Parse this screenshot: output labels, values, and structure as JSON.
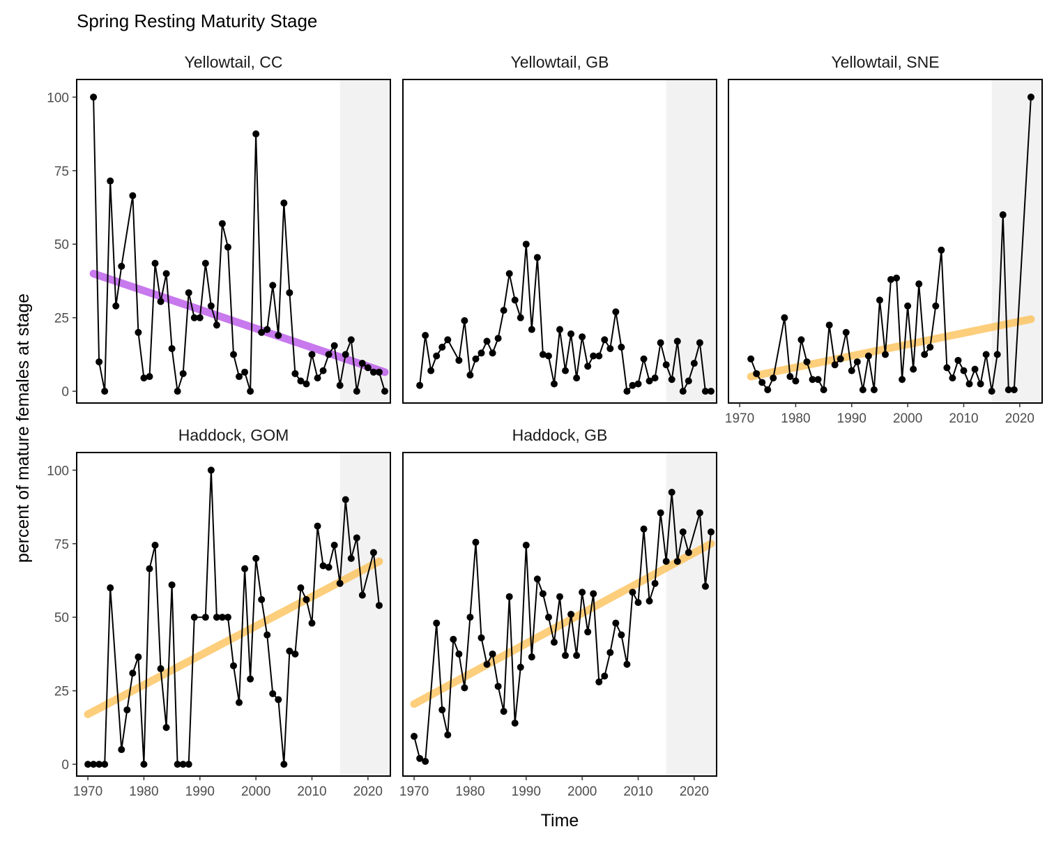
{
  "chart_data": {
    "type": "line",
    "title": "Spring Resting Maturity Stage",
    "xlabel": "Time",
    "ylabel": "percent of mature females at stage",
    "xlim": [
      1968,
      2024
    ],
    "ylim": [
      -4,
      106
    ],
    "x_ticks": [
      1970,
      1980,
      1990,
      2000,
      2010,
      2020
    ],
    "y_ticks": [
      0,
      25,
      50,
      75,
      100
    ],
    "highlight_region": {
      "x_start": 2015,
      "x_end": 2024,
      "color": "#f2f2f2"
    },
    "colors": {
      "decreasing_trend": "#b54de8",
      "increasing_trend": "#fdbe4f",
      "series": "#000000"
    },
    "panels": [
      {
        "name": "Yellowtail, CC",
        "x": [
          1971,
          1972,
          1973,
          1974,
          1975,
          1976,
          1978,
          1979,
          1980,
          1981,
          1982,
          1983,
          1984,
          1985,
          1986,
          1987,
          1988,
          1989,
          1990,
          1991,
          1992,
          1993,
          1994,
          1995,
          1996,
          1997,
          1998,
          1999,
          2000,
          2001,
          2002,
          2003,
          2004,
          2005,
          2006,
          2007,
          2008,
          2009,
          2010,
          2011,
          2012,
          2013,
          2014,
          2015,
          2016,
          2017,
          2018,
          2019,
          2020,
          2021,
          2022,
          2023
        ],
        "y": [
          100,
          10,
          0,
          71.5,
          29,
          42.5,
          66.5,
          20,
          4.5,
          5,
          43.5,
          30.5,
          40,
          14.5,
          0,
          6,
          33.5,
          25,
          25,
          43.5,
          29,
          22.5,
          57,
          49,
          12.5,
          5,
          6.5,
          0,
          87.5,
          20,
          21,
          36,
          19,
          64,
          33.5,
          6,
          3.5,
          2.5,
          12.5,
          4.5,
          7,
          12.5,
          15.5,
          2,
          12.5,
          17.5,
          0,
          9.5,
          8,
          6.5,
          6.5,
          0
        ],
        "trend": {
          "x": [
            1971,
            2023
          ],
          "y": [
            40,
            6.5
          ],
          "direction": "decreasing"
        }
      },
      {
        "name": "Yellowtail, GB",
        "x": [
          1971,
          1972,
          1973,
          1974,
          1975,
          1976,
          1978,
          1979,
          1980,
          1981,
          1982,
          1983,
          1984,
          1985,
          1986,
          1987,
          1988,
          1989,
          1990,
          1991,
          1992,
          1993,
          1994,
          1995,
          1996,
          1997,
          1998,
          1999,
          2000,
          2001,
          2002,
          2003,
          2004,
          2005,
          2006,
          2007,
          2008,
          2009,
          2010,
          2011,
          2012,
          2013,
          2014,
          2015,
          2016,
          2017,
          2018,
          2019,
          2020,
          2021,
          2022,
          2023
        ],
        "y": [
          2,
          19,
          7,
          12,
          15,
          17.5,
          10.5,
          24,
          5.5,
          11,
          13,
          17,
          13,
          18,
          27.5,
          40,
          31,
          25,
          50,
          21,
          45.5,
          12.5,
          12,
          2.5,
          21,
          7,
          19.5,
          4.5,
          18.5,
          8.5,
          12,
          12,
          17.5,
          14.5,
          27,
          15,
          0,
          2,
          2.5,
          11,
          3.5,
          4.5,
          16.5,
          9,
          4,
          17,
          0,
          3.5,
          9.5,
          16.5,
          0,
          0
        ],
        "trend": null
      },
      {
        "name": "Yellowtail, SNE",
        "x": [
          1972,
          1973,
          1974,
          1975,
          1976,
          1978,
          1979,
          1980,
          1981,
          1982,
          1983,
          1984,
          1985,
          1986,
          1987,
          1988,
          1989,
          1990,
          1991,
          1992,
          1993,
          1994,
          1995,
          1996,
          1997,
          1998,
          1999,
          2000,
          2001,
          2002,
          2003,
          2004,
          2005,
          2006,
          2007,
          2008,
          2009,
          2010,
          2011,
          2012,
          2013,
          2014,
          2015,
          2016,
          2017,
          2018,
          2019,
          2022
        ],
        "y": [
          11,
          6,
          3,
          0.5,
          4.5,
          25,
          5,
          3.5,
          17.5,
          10,
          4,
          4,
          0.5,
          22.5,
          9,
          11,
          20,
          7,
          10,
          0.5,
          12,
          0.5,
          31,
          12.5,
          38,
          38.5,
          4,
          29,
          7.5,
          36.5,
          12.5,
          15,
          29,
          48,
          8,
          4.5,
          10.5,
          7,
          2.5,
          7.5,
          2.5,
          12.5,
          0,
          12.5,
          60,
          0.5,
          0.5,
          100
        ],
        "trend": {
          "x": [
            1972,
            2022
          ],
          "y": [
            5,
            24.5
          ],
          "direction": "increasing"
        }
      },
      {
        "name": "Haddock, GOM",
        "x": [
          1970,
          1971,
          1972,
          1973,
          1974,
          1976,
          1977,
          1978,
          1979,
          1980,
          1981,
          1982,
          1983,
          1984,
          1985,
          1986,
          1987,
          1988,
          1989,
          1991,
          1992,
          1993,
          1994,
          1995,
          1996,
          1997,
          1998,
          1999,
          2000,
          2001,
          2002,
          2003,
          2004,
          2005,
          2006,
          2007,
          2008,
          2009,
          2010,
          2011,
          2012,
          2013,
          2014,
          2015,
          2016,
          2017,
          2018,
          2019,
          2021,
          2022
        ],
        "y": [
          0,
          0,
          0,
          0,
          60,
          5,
          18.5,
          31,
          36.5,
          0,
          66.5,
          74.5,
          32.5,
          12.5,
          61,
          0,
          0,
          0,
          50,
          50,
          100,
          50,
          50,
          50,
          33.5,
          21,
          66.5,
          29,
          70,
          56,
          44,
          24,
          22,
          0,
          38.5,
          37.5,
          60,
          56,
          48,
          81,
          67.5,
          67,
          74.5,
          61.5,
          90,
          70,
          77,
          57.5,
          72,
          54
        ],
        "trend": {
          "x": [
            1970,
            2022
          ],
          "y": [
            17,
            69
          ],
          "direction": "increasing"
        }
      },
      {
        "name": "Haddock, GB",
        "x": [
          1970,
          1971,
          1972,
          1974,
          1975,
          1976,
          1977,
          1978,
          1979,
          1980,
          1981,
          1982,
          1983,
          1984,
          1985,
          1986,
          1987,
          1988,
          1989,
          1990,
          1991,
          1992,
          1993,
          1994,
          1995,
          1996,
          1997,
          1998,
          1999,
          2000,
          2001,
          2002,
          2003,
          2004,
          2005,
          2006,
          2007,
          2008,
          2009,
          2010,
          2011,
          2012,
          2013,
          2014,
          2015,
          2016,
          2017,
          2018,
          2019,
          2021,
          2022,
          2023
        ],
        "y": [
          9.5,
          2,
          1,
          48,
          18.5,
          10,
          42.5,
          37.5,
          26,
          50,
          75.5,
          43,
          34,
          37.5,
          26.5,
          18,
          57,
          14,
          33,
          74.5,
          36.5,
          63,
          58,
          50,
          41.5,
          57,
          37,
          51,
          37,
          58.5,
          45,
          58,
          28,
          30,
          38,
          48,
          44,
          34,
          58.5,
          55,
          80,
          55.5,
          61.5,
          85.5,
          69,
          92.5,
          69,
          79,
          72,
          85.5,
          60.5,
          79
        ],
        "trend": {
          "x": [
            1970,
            2023
          ],
          "y": [
            20.5,
            75
          ],
          "direction": "increasing"
        }
      }
    ]
  }
}
